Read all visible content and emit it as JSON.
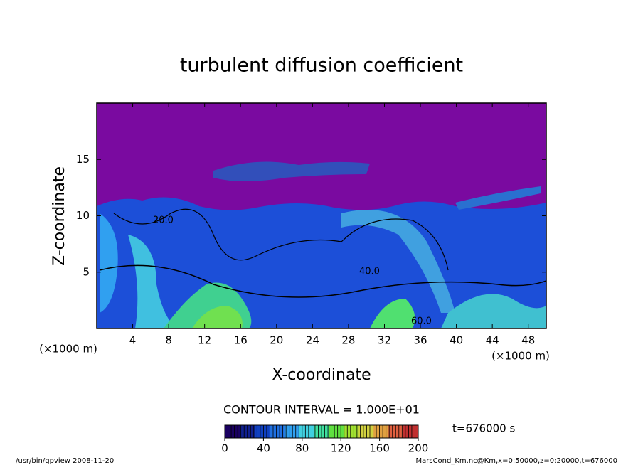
{
  "chart_data": {
    "type": "contour",
    "title": "turbulent diffusion coefficient",
    "xlabel": "X-coordinate",
    "ylabel": "Z-coordinate",
    "xunit": "(×1000 m)",
    "yunit": "(×1000 m)",
    "xlim": [
      0,
      50
    ],
    "ylim": [
      0,
      20
    ],
    "xticks": [
      4,
      8,
      12,
      16,
      20,
      24,
      28,
      32,
      36,
      40,
      44,
      48
    ],
    "yticks": [
      5,
      10,
      15
    ],
    "contour_labels": [
      "20.0",
      "40.0",
      "60.0"
    ],
    "contour_note": "CONTOUR INTERVAL = 1.000E+01",
    "colorbar": {
      "lim": [
        0,
        200
      ],
      "ticks": [
        0,
        40,
        80,
        120,
        160,
        200
      ],
      "colormap": [
        "#1a0060",
        "#102090",
        "#1040c0",
        "#2070e0",
        "#30a0f0",
        "#40d0e0",
        "#40e0a0",
        "#60e040",
        "#a0e030",
        "#d0d040",
        "#e0a040",
        "#e06040",
        "#c03030"
      ]
    },
    "time_label": "t=676000 s",
    "footer_left": "/usr/bin/gpview  2008-11-20",
    "footer_right": "MarsCond_Km.nc@Km,x=0:50000,z=0:20000,t=676000"
  }
}
